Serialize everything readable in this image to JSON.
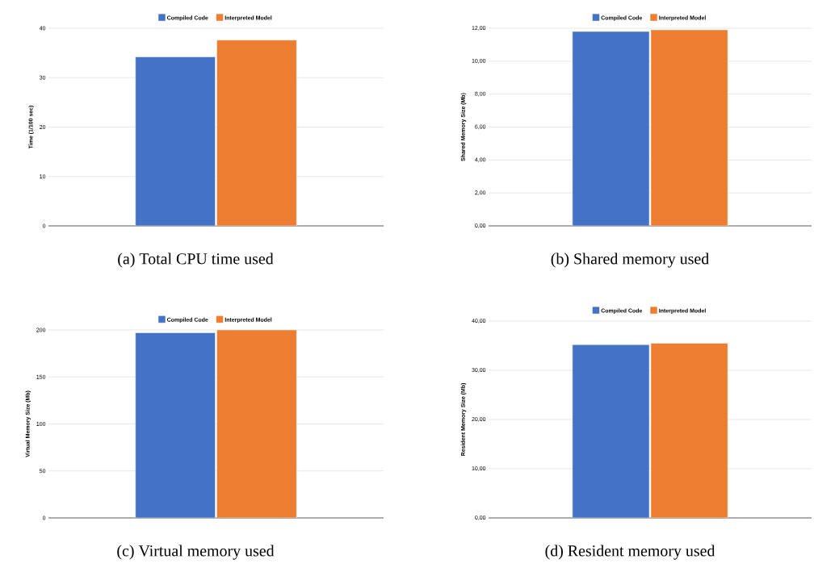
{
  "chart_data": [
    {
      "type": "bar",
      "title": "(a) Total CPU time used",
      "ylabel": "Time (1/100 sec)",
      "categories": [
        null
      ],
      "series": [
        {
          "name": "Compiled Code",
          "color": "#4472c4",
          "values": [
            34.2
          ]
        },
        {
          "name": "Interpreted Model",
          "color": "#ed7d31",
          "values": [
            37.6
          ]
        }
      ],
      "ylim": [
        0,
        40
      ],
      "yticks": [
        0,
        10,
        20,
        30,
        40
      ],
      "grid": "y",
      "legend": "top"
    },
    {
      "type": "bar",
      "title": "(b) Shared memory used",
      "ylabel": "Shared Memory Size (Mb)",
      "categories": [
        null
      ],
      "series": [
        {
          "name": "Compiled Code",
          "color": "#4472c4",
          "values": [
            11.8
          ]
        },
        {
          "name": "Interpreted Model",
          "color": "#ed7d31",
          "values": [
            11.9
          ]
        }
      ],
      "ylim": [
        0,
        12
      ],
      "yticks": [
        {
          "value": 0,
          "label": "0,00"
        },
        {
          "value": 2,
          "label": "2,00"
        },
        {
          "value": 4,
          "label": "4,00"
        },
        {
          "value": 6,
          "label": "6,00"
        },
        {
          "value": 8,
          "label": "8,00"
        },
        {
          "value": 10,
          "label": "10,00"
        },
        {
          "value": 12,
          "label": "12,00"
        }
      ],
      "grid": "y",
      "legend": "top"
    },
    {
      "type": "bar",
      "title": "(c) Virtual memory used",
      "ylabel": "Virtual Memory Size (Mb)",
      "categories": [
        null
      ],
      "series": [
        {
          "name": "Compiled Code",
          "color": "#4472c4",
          "values": [
            197
          ]
        },
        {
          "name": "Interpreted Model",
          "color": "#ed7d31",
          "values": [
            200
          ]
        }
      ],
      "ylim": [
        0,
        200
      ],
      "yticks": [
        0,
        50,
        100,
        150,
        200
      ],
      "grid": "y",
      "legend": "top"
    },
    {
      "type": "bar",
      "title": "(d) Resident memory used",
      "ylabel": "Resident Memory Size (Mb)",
      "categories": [
        null
      ],
      "series": [
        {
          "name": "Compiled Code",
          "color": "#4472c4",
          "values": [
            35.2
          ]
        },
        {
          "name": "Interpreted Model",
          "color": "#ed7d31",
          "values": [
            35.5
          ]
        }
      ],
      "ylim": [
        0,
        40
      ],
      "yticks": [
        {
          "value": 0,
          "label": "0,00"
        },
        {
          "value": 10,
          "label": "10,00"
        },
        {
          "value": 20,
          "label": "20,00"
        },
        {
          "value": 30,
          "label": "30,00"
        },
        {
          "value": 40,
          "label": "40,00"
        }
      ],
      "grid": "y",
      "legend": "top"
    }
  ]
}
